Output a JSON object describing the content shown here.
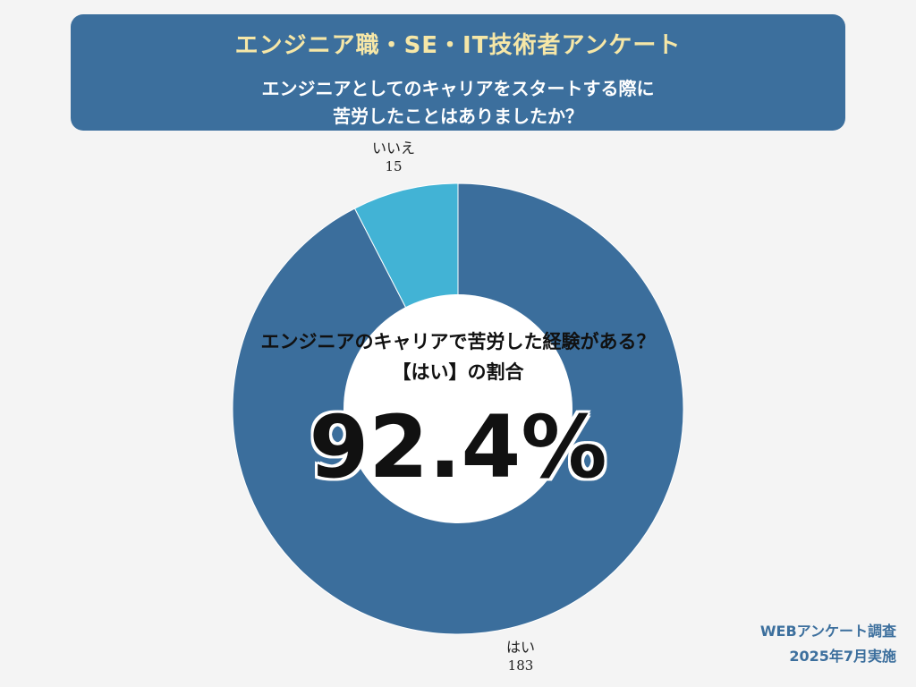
{
  "header": {
    "title": "エンジニア職・SE・IT技術者アンケート",
    "question_line1": "エンジニアとしてのキャリアをスタートする際に",
    "question_line2": "苦労したことはありましたか？"
  },
  "center": {
    "line1": "エンジニアのキャリアで苦労した経験がある？",
    "line2": "【はい】の割合",
    "percent": "92.4%"
  },
  "footer": {
    "line1": "WEBアンケート調査",
    "line2": "2025年7月実施"
  },
  "colors": {
    "banner": "#3c6f9d",
    "yes": "#3b6e9c",
    "no": "#42b3d5",
    "title_text": "#f6e7a7"
  },
  "chart_data": {
    "type": "pie",
    "title": "エンジニアのキャリアで苦労した経験がある？",
    "slices": [
      {
        "label": "はい",
        "value": 183,
        "value_label": "183"
      },
      {
        "label": "いいえ",
        "value": 15,
        "value_label": "15"
      }
    ],
    "legend": "none"
  }
}
